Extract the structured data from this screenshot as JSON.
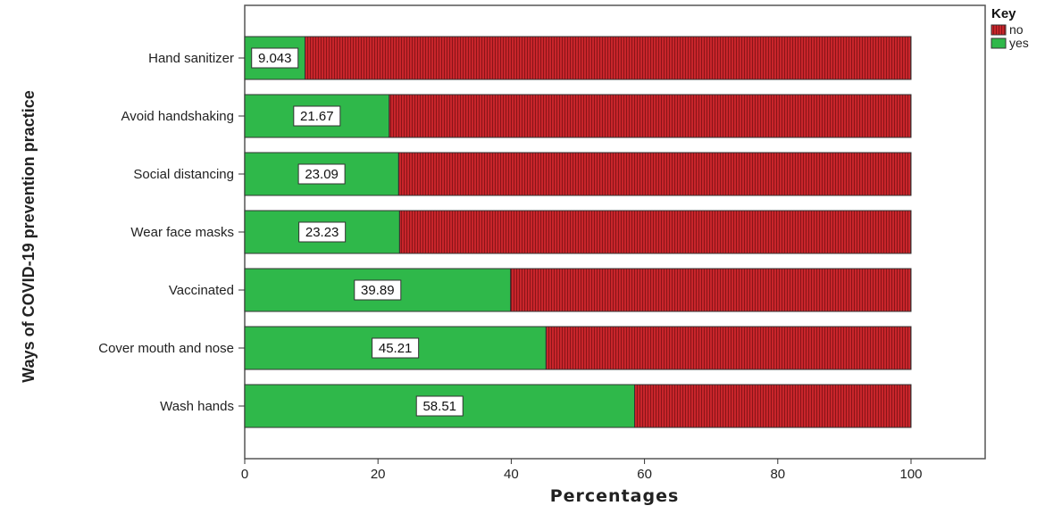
{
  "chart_data": {
    "type": "bar",
    "orientation": "horizontal",
    "stacked": true,
    "categories": [
      "Hand sanitizer",
      "Avoid handshaking",
      "Social distancing",
      "Wear face masks",
      "Vaccinated",
      "Cover mouth and nose",
      "Wash  hands"
    ],
    "series": [
      {
        "name": "yes",
        "color": "#2fb84a",
        "values": [
          9.043,
          21.67,
          23.09,
          23.23,
          39.89,
          45.21,
          58.51
        ],
        "data_labels": [
          "9.043",
          "21.67",
          "23.09",
          "23.23",
          "39.89",
          "45.21",
          "58.51"
        ]
      },
      {
        "name": "no",
        "color": "#c8252b",
        "pattern": "vertical-stripes",
        "values": [
          90.957,
          78.33,
          76.91,
          76.77,
          60.11,
          54.79,
          41.49
        ]
      }
    ],
    "xlabel": "Percentages",
    "ylabel": "Ways of COVID-19 prevention practice",
    "xlim": [
      0,
      100
    ],
    "xticks": [
      0,
      20,
      40,
      60,
      80,
      100
    ],
    "legend": {
      "title": "Key",
      "placement": "top-right",
      "entries": [
        "no",
        "yes"
      ]
    },
    "grid": false
  }
}
